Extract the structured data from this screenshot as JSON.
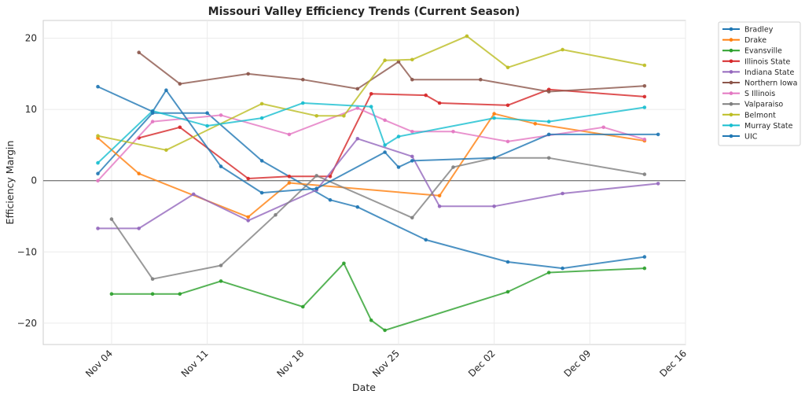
{
  "chart_data": {
    "type": "line",
    "title": "Missouri Valley Efficiency Trends (Current Season)",
    "xlabel": "Date",
    "ylabel": "Efficiency Margin",
    "x_ticks": [
      "Nov 04",
      "Nov 11",
      "Nov 18",
      "Nov 25",
      "Dec 02",
      "Dec 09",
      "Dec 16"
    ],
    "x_tick_dates": [
      "2024-11-04",
      "2024-11-11",
      "2024-11-18",
      "2024-11-25",
      "2024-12-02",
      "2024-12-09",
      "2024-12-16"
    ],
    "xlim": [
      "2024-10-30",
      "2024-12-16"
    ],
    "y_ticks": [
      -20,
      -10,
      0,
      10,
      20
    ],
    "ylim": [
      -23,
      22.5
    ],
    "grid": true,
    "reference_line": 0,
    "legend_position": "outside-right",
    "series": [
      {
        "name": "Bradley",
        "color": "#1f77b4",
        "points": [
          [
            "2024-11-03",
            1.0
          ],
          [
            "2024-11-07",
            9.5
          ],
          [
            "2024-11-11",
            9.5
          ],
          [
            "2024-11-15",
            2.8
          ],
          [
            "2024-11-20",
            -2.7
          ],
          [
            "2024-11-22",
            -3.7
          ],
          [
            "2024-11-27",
            -8.3
          ],
          [
            "2024-12-03",
            -11.4
          ],
          [
            "2024-12-07",
            -12.3
          ],
          [
            "2024-12-13",
            -10.7
          ]
        ]
      },
      {
        "name": "Drake",
        "color": "#ff7f0e",
        "points": [
          [
            "2024-11-03",
            6.0
          ],
          [
            "2024-11-06",
            1.0
          ],
          [
            "2024-11-14",
            -5.1
          ],
          [
            "2024-11-17",
            -0.3
          ],
          [
            "2024-11-28",
            -2.1
          ],
          [
            "2024-12-02",
            9.4
          ],
          [
            "2024-12-05",
            8.0
          ],
          [
            "2024-12-13",
            5.6
          ]
        ]
      },
      {
        "name": "Evansville",
        "color": "#2ca02c",
        "points": [
          [
            "2024-11-04",
            -15.9
          ],
          [
            "2024-11-07",
            -15.9
          ],
          [
            "2024-11-09",
            -15.9
          ],
          [
            "2024-11-12",
            -14.1
          ],
          [
            "2024-11-18",
            -17.7
          ],
          [
            "2024-11-21",
            -11.6
          ],
          [
            "2024-11-23",
            -19.6
          ],
          [
            "2024-11-24",
            -21.0
          ],
          [
            "2024-12-03",
            -15.6
          ],
          [
            "2024-12-06",
            -12.9
          ],
          [
            "2024-12-13",
            -12.3
          ]
        ]
      },
      {
        "name": "Illinois State",
        "color": "#d62728",
        "points": [
          [
            "2024-11-06",
            6.0
          ],
          [
            "2024-11-09",
            7.5
          ],
          [
            "2024-11-14",
            0.3
          ],
          [
            "2024-11-17",
            0.6
          ],
          [
            "2024-11-20",
            0.6
          ],
          [
            "2024-11-23",
            12.2
          ],
          [
            "2024-11-27",
            12.0
          ],
          [
            "2024-11-28",
            10.9
          ],
          [
            "2024-12-03",
            10.6
          ],
          [
            "2024-12-06",
            12.8
          ],
          [
            "2024-12-13",
            11.8
          ]
        ]
      },
      {
        "name": "Indiana State",
        "color": "#9467bd",
        "points": [
          [
            "2024-11-03",
            -6.7
          ],
          [
            "2024-11-06",
            -6.7
          ],
          [
            "2024-11-10",
            -1.9
          ],
          [
            "2024-11-14",
            -5.6
          ],
          [
            "2024-11-19",
            -1.3
          ],
          [
            "2024-11-22",
            5.9
          ],
          [
            "2024-11-26",
            3.4
          ],
          [
            "2024-11-28",
            -3.6
          ],
          [
            "2024-12-02",
            -3.6
          ],
          [
            "2024-12-07",
            -1.8
          ],
          [
            "2024-12-14",
            -0.4
          ]
        ]
      },
      {
        "name": "Northern Iowa",
        "color": "#8c564b",
        "points": [
          [
            "2024-11-06",
            18.0
          ],
          [
            "2024-11-09",
            13.6
          ],
          [
            "2024-11-14",
            15.0
          ],
          [
            "2024-11-18",
            14.2
          ],
          [
            "2024-11-22",
            12.9
          ],
          [
            "2024-11-25",
            16.7
          ],
          [
            "2024-11-26",
            14.2
          ],
          [
            "2024-12-01",
            14.2
          ],
          [
            "2024-12-06",
            12.5
          ],
          [
            "2024-12-13",
            13.3
          ]
        ]
      },
      {
        "name": "S Illinois",
        "color": "#e377c2",
        "points": [
          [
            "2024-11-03",
            0.0
          ],
          [
            "2024-11-07",
            8.3
          ],
          [
            "2024-11-12",
            9.2
          ],
          [
            "2024-11-17",
            6.5
          ],
          [
            "2024-11-22",
            10.2
          ],
          [
            "2024-11-24",
            8.5
          ],
          [
            "2024-11-26",
            6.9
          ],
          [
            "2024-11-29",
            6.9
          ],
          [
            "2024-12-03",
            5.5
          ],
          [
            "2024-12-10",
            7.5
          ],
          [
            "2024-12-13",
            5.8
          ]
        ]
      },
      {
        "name": "Valparaiso",
        "color": "#7f7f7f",
        "points": [
          [
            "2024-11-04",
            -5.4
          ],
          [
            "2024-11-07",
            -13.8
          ],
          [
            "2024-11-12",
            -11.9
          ],
          [
            "2024-11-16",
            -4.8
          ],
          [
            "2024-11-19",
            0.7
          ],
          [
            "2024-11-26",
            -5.2
          ],
          [
            "2024-11-29",
            1.9
          ],
          [
            "2024-12-02",
            3.2
          ],
          [
            "2024-12-06",
            3.2
          ],
          [
            "2024-12-13",
            0.9
          ]
        ]
      },
      {
        "name": "Belmont",
        "color": "#bcbd22",
        "points": [
          [
            "2024-11-03",
            6.3
          ],
          [
            "2024-11-08",
            4.3
          ],
          [
            "2024-11-15",
            10.8
          ],
          [
            "2024-11-19",
            9.1
          ],
          [
            "2024-11-21",
            9.1
          ],
          [
            "2024-11-24",
            16.9
          ],
          [
            "2024-11-26",
            17.0
          ],
          [
            "2024-11-30",
            20.3
          ],
          [
            "2024-12-03",
            15.9
          ],
          [
            "2024-12-07",
            18.4
          ],
          [
            "2024-12-13",
            16.2
          ]
        ]
      },
      {
        "name": "Murray State",
        "color": "#17becf",
        "points": [
          [
            "2024-11-03",
            2.5
          ],
          [
            "2024-11-07",
            9.8
          ],
          [
            "2024-11-11",
            7.7
          ],
          [
            "2024-11-15",
            8.8
          ],
          [
            "2024-11-18",
            10.9
          ],
          [
            "2024-11-23",
            10.4
          ],
          [
            "2024-11-24",
            5.0
          ],
          [
            "2024-11-25",
            6.2
          ],
          [
            "2024-12-02",
            8.8
          ],
          [
            "2024-12-06",
            8.3
          ],
          [
            "2024-12-13",
            10.3
          ]
        ]
      },
      {
        "name": "UIC",
        "color": "#1f77b4",
        "points": [
          [
            "2024-11-03",
            13.2
          ],
          [
            "2024-11-07",
            9.7
          ],
          [
            "2024-11-08",
            12.7
          ],
          [
            "2024-11-12",
            2.0
          ],
          [
            "2024-11-15",
            -1.7
          ],
          [
            "2024-11-19",
            -1.1
          ],
          [
            "2024-11-24",
            4.0
          ],
          [
            "2024-11-25",
            1.9
          ],
          [
            "2024-11-26",
            2.8
          ],
          [
            "2024-12-02",
            3.2
          ],
          [
            "2024-12-06",
            6.5
          ],
          [
            "2024-12-14",
            6.5
          ]
        ]
      }
    ]
  }
}
